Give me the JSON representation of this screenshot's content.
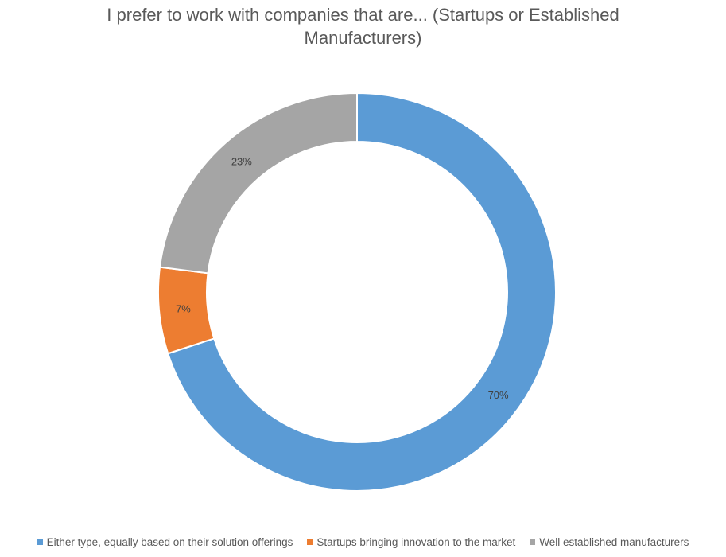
{
  "chart_data": {
    "type": "pie",
    "variant": "doughnut",
    "title_lines": [
      "I prefer to work with companies that are... (Startups or Established",
      "Manufacturers)"
    ],
    "series": [
      {
        "categories": [
          "Either type, equally based on their solution offerings",
          "Startups bringing innovation to the market",
          "Well established manufacturers"
        ],
        "values": [
          70,
          7,
          23
        ],
        "data_labels": [
          "70%",
          "7%",
          "23%"
        ],
        "colors": [
          "#5B9BD5",
          "#ED7D31",
          "#A5A5A5"
        ]
      }
    ],
    "legend_position": "bottom"
  }
}
